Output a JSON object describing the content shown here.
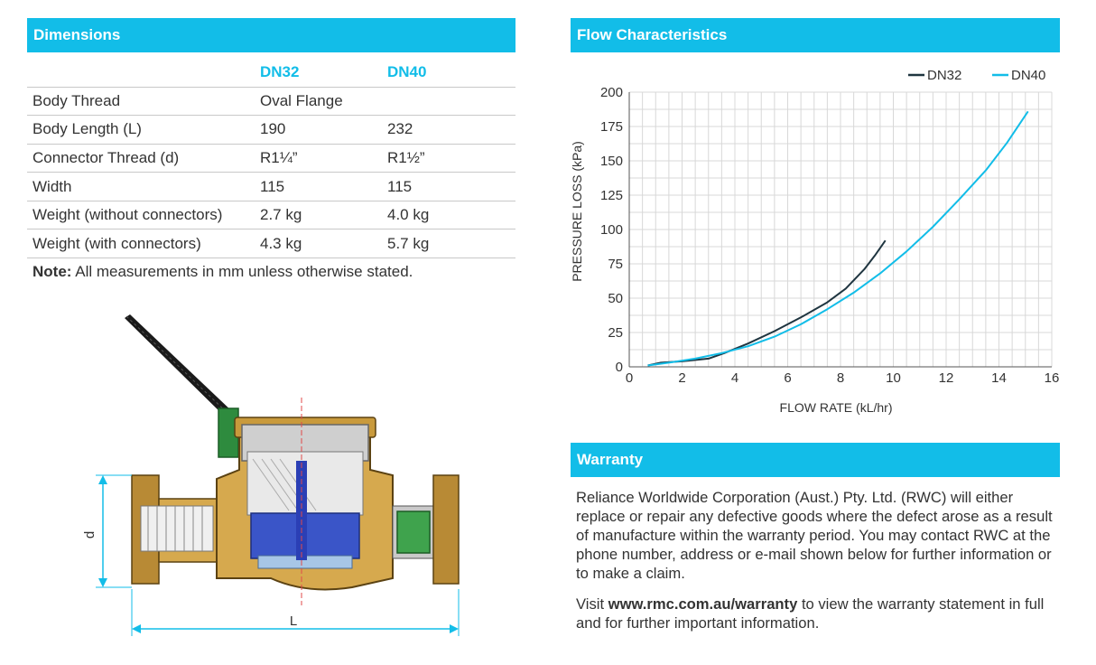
{
  "dimensions": {
    "title": "Dimensions",
    "columns": [
      "",
      "DN32",
      "DN40"
    ],
    "rows": [
      [
        "Body Thread",
        "Oval Flange",
        ""
      ],
      [
        "Body Length (L)",
        "190",
        "232"
      ],
      [
        "Connector Thread (d)",
        "R1¼”",
        "R1½”"
      ],
      [
        "Width",
        "115",
        "115"
      ],
      [
        "Weight (without connectors)",
        "2.7 kg",
        "4.0 kg"
      ],
      [
        "Weight (with connectors)",
        "4.3 kg",
        "5.7 kg"
      ]
    ],
    "note_label": "Note:",
    "note_text": " All measurements in mm unless otherwise stated."
  },
  "diagram": {
    "label_d": "d",
    "label_L": "L"
  },
  "flow": {
    "title": "Flow Characteristics"
  },
  "chart_data": {
    "type": "line",
    "title": "",
    "xlabel": "FLOW RATE (kL/hr)",
    "ylabel": "PRESSURE LOSS (kPa)",
    "xlim": [
      0,
      16
    ],
    "ylim": [
      0,
      200
    ],
    "xticks": [
      0,
      2,
      4,
      6,
      8,
      10,
      12,
      14,
      16
    ],
    "yticks": [
      0,
      25,
      50,
      75,
      100,
      125,
      150,
      175,
      200
    ],
    "grid": true,
    "legend_position": "top-right",
    "series": [
      {
        "name": "DN32",
        "color": "#1f3540",
        "x": [
          0.7,
          1.2,
          2.0,
          3.0,
          3.6,
          4.5,
          5.5,
          6.5,
          7.5,
          8.2,
          8.9,
          9.3,
          9.7
        ],
        "y": [
          1,
          3,
          4,
          6,
          10,
          17,
          26,
          36,
          47,
          57,
          71,
          81,
          92
        ]
      },
      {
        "name": "DN40",
        "color": "#12bde8",
        "x": [
          0.7,
          1.5,
          2.5,
          3.5,
          4.5,
          5.5,
          6.5,
          7.5,
          8.5,
          9.5,
          10.5,
          11.5,
          12.5,
          13.5,
          14.3,
          15.1
        ],
        "y": [
          1,
          3,
          6,
          10,
          15,
          22,
          31,
          42,
          54,
          68,
          84,
          102,
          122,
          143,
          163,
          186
        ]
      }
    ]
  },
  "warranty": {
    "title": "Warranty",
    "paragraph1": "Reliance Worldwide Corporation (Aust.) Pty. Ltd. (RWC) will either replace or repair any defective goods where the defect arose as a result of manufacture within the warranty period. You may contact RWC at the phone number, address or e-mail shown below for further information or to make a claim.",
    "p2_pre": "Visit ",
    "p2_url": "www.rmc.com.au/warranty",
    "p2_post": " to view the warranty statement in full and for further important information."
  }
}
